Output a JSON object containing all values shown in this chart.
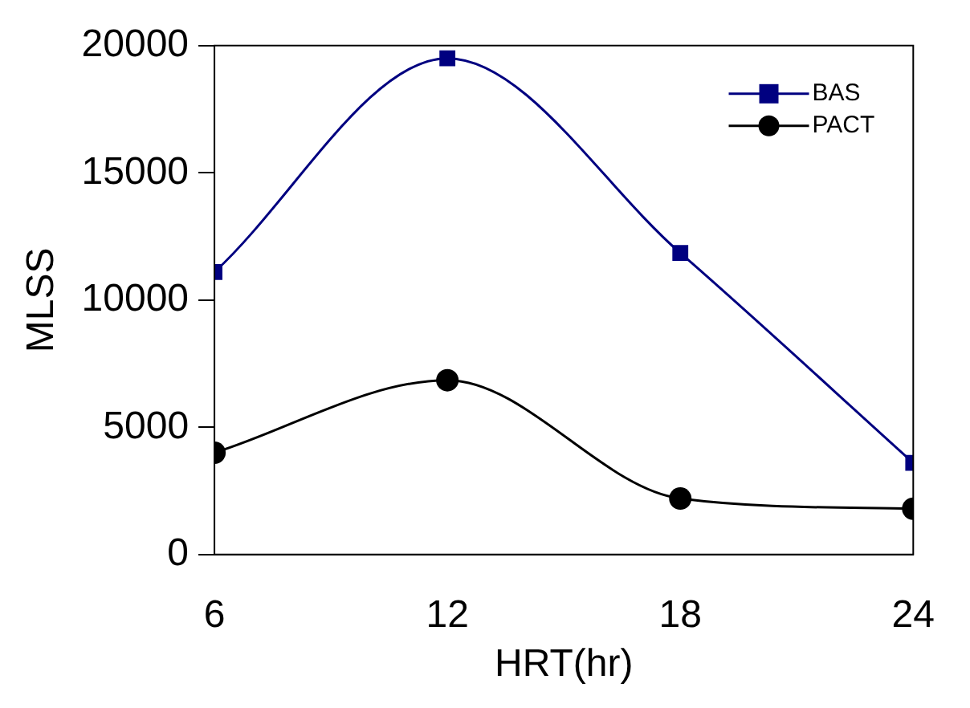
{
  "chart_data": {
    "type": "line",
    "xlabel": "HRT(hr)",
    "ylabel": "MLSS",
    "x": [
      6,
      12,
      18,
      24
    ],
    "series": [
      {
        "name": "BAS",
        "color": "#000080",
        "marker": "square",
        "values": [
          11100,
          19500,
          11850,
          3600
        ]
      },
      {
        "name": "PACT",
        "color": "#000000",
        "marker": "circle",
        "values": [
          4000,
          6850,
          2200,
          1800
        ]
      }
    ],
    "xlim": [
      6,
      24
    ],
    "xticks": [
      6,
      12,
      18,
      24
    ],
    "ylim": [
      0,
      20000
    ],
    "yticks": [
      0,
      5000,
      10000,
      15000,
      20000
    ],
    "grid": false,
    "legend": "top right"
  }
}
